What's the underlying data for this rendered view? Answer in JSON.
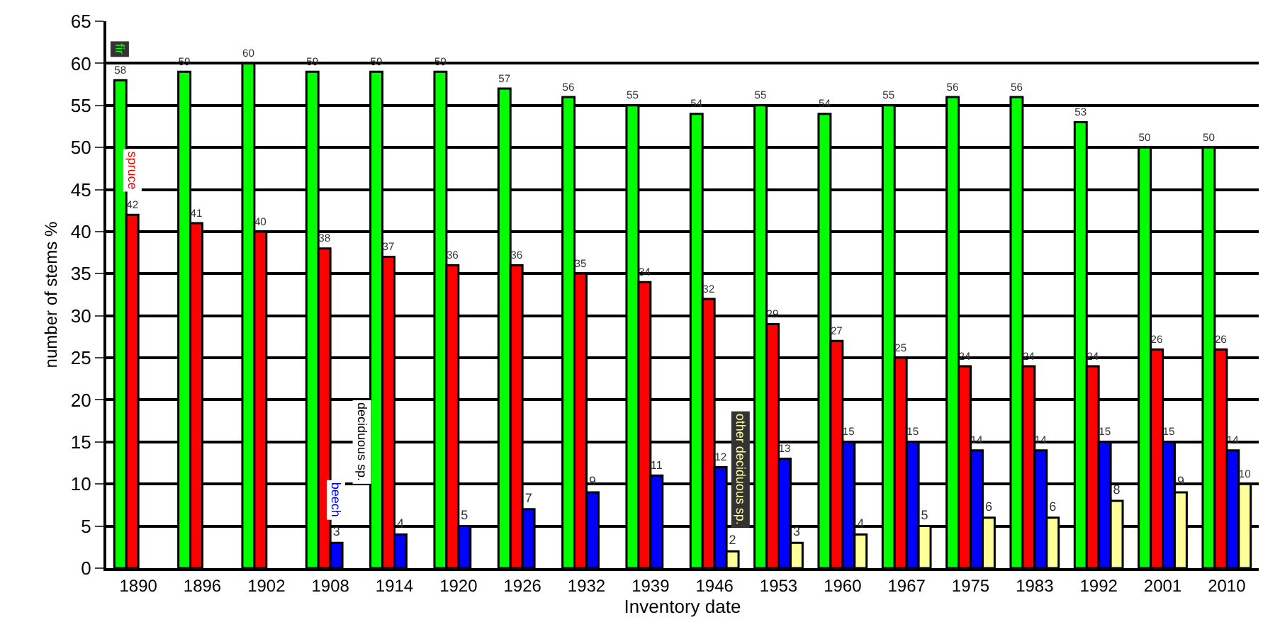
{
  "chart_data": {
    "type": "bar",
    "xlabel": "Inventory date",
    "ylabel": "number of stems %",
    "categories": [
      "1890",
      "1896",
      "1902",
      "1908",
      "1914",
      "1920",
      "1926",
      "1932",
      "1939",
      "1946",
      "1953",
      "1960",
      "1967",
      "1975",
      "1983",
      "1992",
      "2001",
      "2010"
    ],
    "series": [
      {
        "name": "fir",
        "color": "#00ff00",
        "values": [
          58,
          59,
          60,
          59,
          59,
          59,
          57,
          56,
          55,
          54,
          55,
          54,
          55,
          56,
          56,
          53,
          50,
          50
        ]
      },
      {
        "name": "spruce",
        "color": "#ff0000",
        "values": [
          42,
          41,
          40,
          38,
          37,
          36,
          36,
          35,
          34,
          32,
          29,
          27,
          25,
          24,
          24,
          24,
          26,
          26
        ]
      },
      {
        "name": "beech",
        "color": "#0000ff",
        "values": [
          null,
          null,
          null,
          3,
          4,
          5,
          7,
          9,
          11,
          12,
          13,
          15,
          15,
          14,
          14,
          15,
          15,
          14
        ]
      },
      {
        "name": "other deciduous sp.",
        "color": "#ffff99",
        "values": [
          null,
          null,
          null,
          null,
          null,
          null,
          null,
          null,
          null,
          2,
          3,
          4,
          5,
          6,
          6,
          8,
          9,
          10
        ]
      }
    ],
    "annotations": [
      {
        "text": "deciduous sp.",
        "x": "1908",
        "y": 10
      }
    ],
    "ylim": [
      0,
      65
    ],
    "yticks": [
      0,
      5,
      10,
      15,
      20,
      25,
      30,
      35,
      40,
      45,
      50,
      55,
      60,
      65
    ],
    "grid": "y",
    "legend": false,
    "data_labels": true
  }
}
